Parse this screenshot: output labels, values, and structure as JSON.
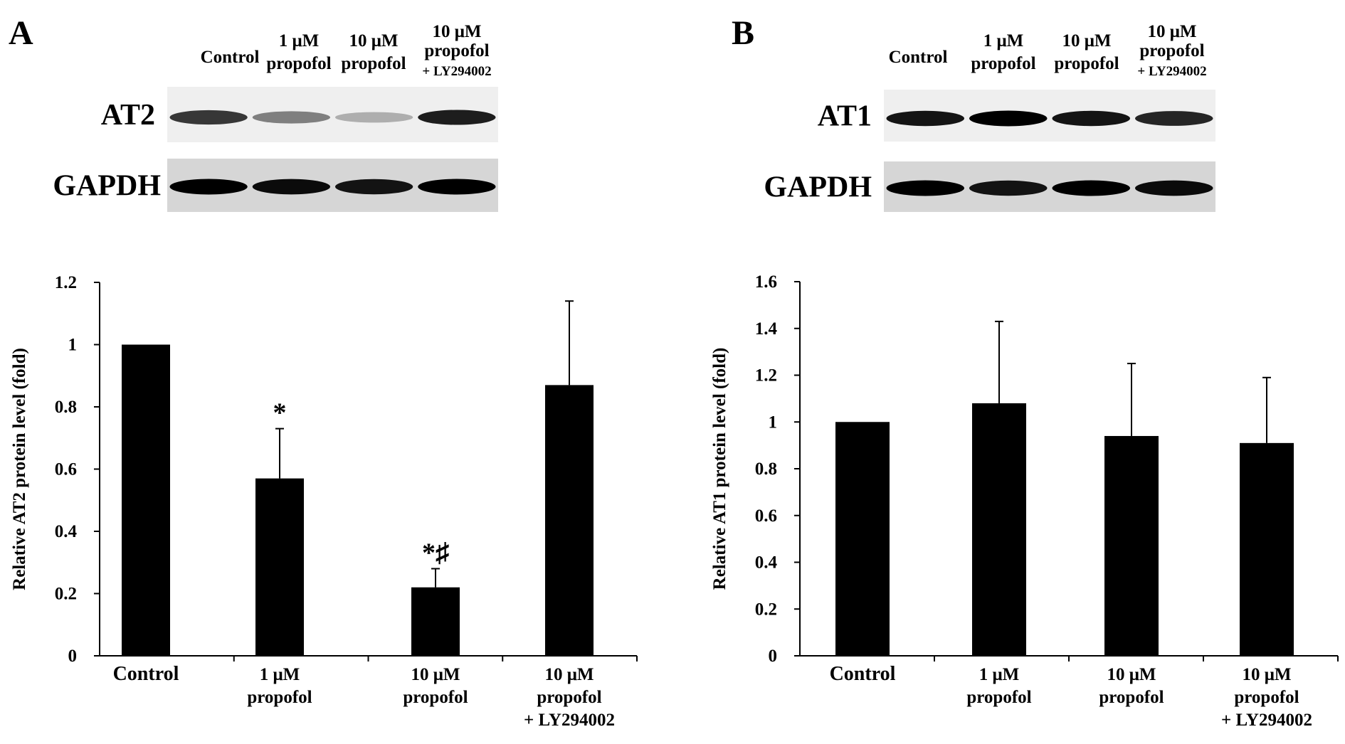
{
  "panels": [
    {
      "letter": "A",
      "blot": {
        "lane_labels": [
          [
            "Control"
          ],
          [
            "1 μM",
            "propofol"
          ],
          [
            "10 μM",
            "propofol"
          ],
          [
            "10 μM",
            "propofol",
            "+ LY294002"
          ]
        ],
        "rows": [
          {
            "label": "AT2",
            "intensities": [
              0.85,
              0.6,
              0.4,
              0.92
            ]
          },
          {
            "label": "GAPDH",
            "intensities": [
              1.0,
              0.97,
              0.95,
              1.0
            ]
          }
        ]
      }
    },
    {
      "letter": "B",
      "blot": {
        "lane_labels": [
          [
            "Control"
          ],
          [
            "1 μM",
            "propofol"
          ],
          [
            "10 μM",
            "propofol"
          ],
          [
            "10 μM",
            "propofol",
            "+ LY294002"
          ]
        ],
        "rows": [
          {
            "label": "AT1",
            "intensities": [
              0.95,
              1.0,
              0.95,
              0.9
            ]
          },
          {
            "label": "GAPDH",
            "intensities": [
              1.0,
              0.95,
              1.0,
              0.97
            ]
          }
        ]
      }
    }
  ],
  "chart_data": [
    {
      "type": "bar",
      "categories": [
        [
          "Control"
        ],
        [
          "1 μM",
          "propofol"
        ],
        [
          "10 μM",
          "propofol"
        ],
        [
          "10 μM",
          "propofol",
          "+ LY294002"
        ]
      ],
      "values": [
        1.0,
        0.57,
        0.22,
        0.87
      ],
      "errors": [
        0,
        0.16,
        0.06,
        0.27
      ],
      "annotations": [
        "",
        "*",
        "*♯",
        ""
      ],
      "ylabel": "Relative AT2 protein level (fold)",
      "ylim": [
        0,
        1.2
      ],
      "yticks": [
        "0",
        "0.2",
        "0.4",
        "0.6",
        "0.8",
        "1",
        "1.2"
      ],
      "grid": false
    },
    {
      "type": "bar",
      "categories": [
        [
          "Control"
        ],
        [
          "1 μM",
          "propofol"
        ],
        [
          "10 μM",
          "propofol"
        ],
        [
          "10 μM",
          "propofol",
          "+ LY294002"
        ]
      ],
      "values": [
        1.0,
        1.08,
        0.94,
        0.91
      ],
      "errors": [
        0,
        0.35,
        0.31,
        0.28
      ],
      "annotations": [
        "",
        "",
        "",
        ""
      ],
      "ylabel": "Relative AT1 protein level (fold)",
      "ylim": [
        0,
        1.6
      ],
      "yticks": [
        "0",
        "0.2",
        "0.4",
        "0.6",
        "0.8",
        "1",
        "1.2",
        "1.4",
        "1.6"
      ],
      "grid": false
    }
  ]
}
